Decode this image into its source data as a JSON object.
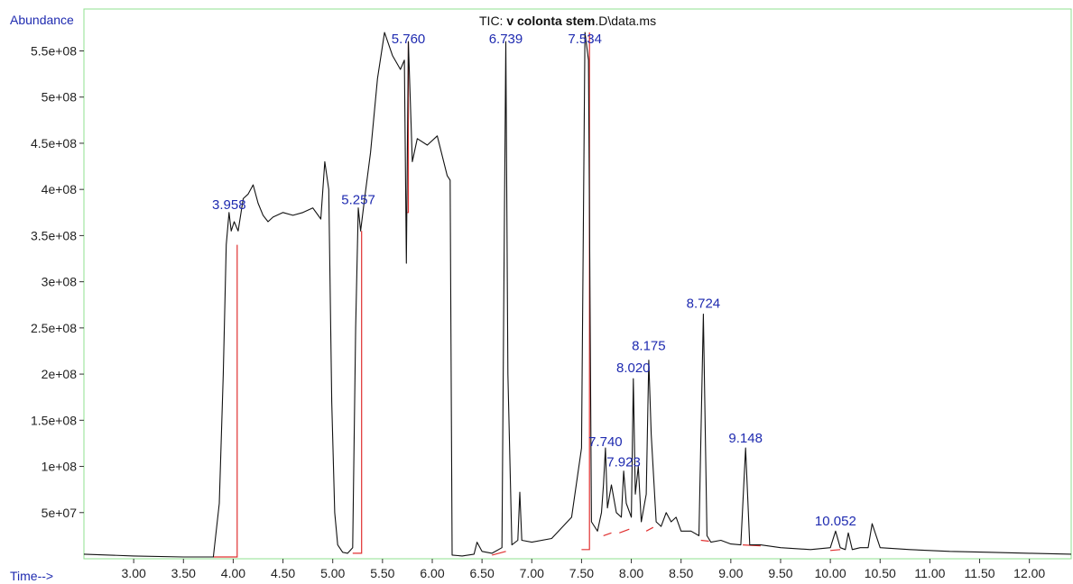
{
  "title": {
    "prefix": "TIC: ",
    "bold": "v colonta stem",
    "suffix": ".D\\data.ms"
  },
  "chart_data": {
    "type": "line",
    "ylabel": "Abundance",
    "xlabel": "Time-->",
    "xlim": [
      2.5,
      12.42
    ],
    "ylim": [
      0,
      570000000
    ],
    "x_ticks": [
      3.0,
      3.5,
      4.0,
      4.5,
      5.0,
      5.5,
      6.0,
      6.5,
      7.0,
      7.5,
      8.0,
      8.5,
      9.0,
      9.5,
      10.0,
      10.5,
      11.0,
      11.5,
      12.0
    ],
    "x_tick_labels": [
      "3.00",
      "3.50",
      "4.00",
      "4.50",
      "5.00",
      "5.50",
      "6.00",
      "6.50",
      "7.00",
      "7.50",
      "8.00",
      "8.50",
      "9.00",
      "9.50",
      "10.00",
      "10.50",
      "11.00",
      "11.50",
      "12.00"
    ],
    "y_ticks": [
      50000000,
      100000000,
      150000000,
      200000000,
      250000000,
      300000000,
      350000000,
      400000000,
      450000000,
      500000000,
      550000000
    ],
    "y_tick_labels": [
      "5e+07",
      "1e+08",
      "1.5e+08",
      "2e+08",
      "2.5e+08",
      "3e+08",
      "3.5e+08",
      "4e+08",
      "4.5e+08",
      "5e+08",
      "5.5e+08"
    ],
    "grid": false,
    "series": [
      {
        "x": [
          2.5,
          3.0,
          3.5,
          3.8,
          3.86,
          3.9,
          3.93,
          3.958,
          3.98,
          4.01,
          4.05,
          4.1,
          4.15,
          4.2,
          4.25,
          4.3,
          4.35,
          4.4,
          4.5,
          4.6,
          4.7,
          4.8,
          4.88,
          4.92,
          4.96,
          4.99,
          5.02,
          5.05,
          5.1,
          5.15,
          5.2,
          5.23,
          5.257,
          5.28,
          5.32,
          5.38,
          5.45,
          5.52,
          5.6,
          5.68,
          5.72,
          5.74,
          5.76,
          5.8,
          5.85,
          5.95,
          6.05,
          6.15,
          6.18,
          6.2,
          6.3,
          6.42,
          6.45,
          6.5,
          6.6,
          6.7,
          6.72,
          6.739,
          6.76,
          6.8,
          6.86,
          6.88,
          6.9,
          7.0,
          7.2,
          7.4,
          7.5,
          7.534,
          7.57,
          7.6,
          7.66,
          7.7,
          7.72,
          7.74,
          7.76,
          7.8,
          7.85,
          7.9,
          7.923,
          7.95,
          8.0,
          8.02,
          8.04,
          8.07,
          8.1,
          8.15,
          8.175,
          8.2,
          8.25,
          8.3,
          8.35,
          8.4,
          8.45,
          8.5,
          8.6,
          8.68,
          8.724,
          8.76,
          8.8,
          8.9,
          9.0,
          9.1,
          9.148,
          9.19,
          9.3,
          9.5,
          9.8,
          10.0,
          10.052,
          10.1,
          10.15,
          10.18,
          10.22,
          10.3,
          10.38,
          10.42,
          10.5,
          10.8,
          11.2,
          11.6,
          12.0,
          12.42
        ],
        "y": [
          5000000,
          3000000,
          2000000,
          2000000,
          60000000,
          200000000,
          340000000,
          375000000,
          355000000,
          365000000,
          355000000,
          390000000,
          395000000,
          405000000,
          385000000,
          372000000,
          365000000,
          370000000,
          375000000,
          372000000,
          375000000,
          380000000,
          368000000,
          430000000,
          400000000,
          170000000,
          50000000,
          15000000,
          7000000,
          6000000,
          12000000,
          250000000,
          380000000,
          355000000,
          390000000,
          440000000,
          520000000,
          570000000,
          545000000,
          530000000,
          540000000,
          320000000,
          560000000,
          430000000,
          455000000,
          448000000,
          458000000,
          415000000,
          410000000,
          4000000,
          3000000,
          5000000,
          18000000,
          8000000,
          6000000,
          12000000,
          300000000,
          560000000,
          200000000,
          15000000,
          20000000,
          72000000,
          20000000,
          18000000,
          22000000,
          45000000,
          120000000,
          570000000,
          540000000,
          40000000,
          30000000,
          50000000,
          80000000,
          120000000,
          55000000,
          80000000,
          50000000,
          45000000,
          95000000,
          60000000,
          45000000,
          195000000,
          70000000,
          100000000,
          40000000,
          70000000,
          215000000,
          135000000,
          40000000,
          35000000,
          50000000,
          40000000,
          45000000,
          30000000,
          30000000,
          25000000,
          265000000,
          25000000,
          18000000,
          20000000,
          16000000,
          15000000,
          120000000,
          15000000,
          15000000,
          12000000,
          10000000,
          12000000,
          30000000,
          12000000,
          10000000,
          28000000,
          10000000,
          12000000,
          12000000,
          38000000,
          12000000,
          10000000,
          8000000,
          7000000,
          6000000,
          5000000
        ]
      }
    ],
    "integration_baselines": [
      {
        "x": [
          3.8,
          4.04,
          4.04
        ],
        "y": [
          2000000,
          2000000,
          340000000
        ]
      },
      {
        "x": [
          5.2,
          5.29,
          5.29
        ],
        "y": [
          6000000,
          6000000,
          355000000
        ]
      },
      {
        "x": [
          5.75,
          5.76,
          5.76
        ],
        "y": [
          375000000,
          375000000,
          560000000
        ]
      },
      {
        "x": [
          6.6,
          6.74
        ],
        "y": [
          4000000,
          8000000
        ]
      },
      {
        "x": [
          7.5,
          7.58,
          7.58
        ],
        "y": [
          10000000,
          10000000,
          570000000
        ]
      },
      {
        "x": [
          7.72,
          7.8
        ],
        "y": [
          25000000,
          28000000
        ]
      },
      {
        "x": [
          7.88,
          7.98
        ],
        "y": [
          28000000,
          32000000
        ]
      },
      {
        "x": [
          8.15,
          8.22
        ],
        "y": [
          30000000,
          34000000
        ]
      },
      {
        "x": [
          8.7,
          8.78
        ],
        "y": [
          20000000,
          19000000
        ]
      },
      {
        "x": [
          9.12,
          9.3
        ],
        "y": [
          15000000,
          14000000
        ]
      },
      {
        "x": [
          10.0,
          10.1
        ],
        "y": [
          9000000,
          10000000
        ]
      }
    ],
    "annotations": [
      {
        "text": "3.958",
        "x": 3.958,
        "y": 375000000
      },
      {
        "text": "5.257",
        "x": 5.257,
        "y": 380000000
      },
      {
        "text": "5.760",
        "x": 5.76,
        "y": 555000000
      },
      {
        "text": "6.739",
        "x": 6.739,
        "y": 555000000
      },
      {
        "text": "7.534",
        "x": 7.534,
        "y": 555000000
      },
      {
        "text": "7.740",
        "x": 7.74,
        "y": 118000000
      },
      {
        "text": "7.923",
        "x": 7.923,
        "y": 96000000
      },
      {
        "text": "8.020",
        "x": 8.02,
        "y": 198000000
      },
      {
        "text": "8.175",
        "x": 8.175,
        "y": 222000000
      },
      {
        "text": "8.724",
        "x": 8.724,
        "y": 268000000
      },
      {
        "text": "9.148",
        "x": 9.148,
        "y": 122000000
      },
      {
        "text": "10.052",
        "x": 10.052,
        "y": 32000000
      }
    ],
    "colors": {
      "trace": "#111111",
      "integration": "#e03030",
      "frame": "#8fe08f",
      "label": "#1f2bb0"
    }
  }
}
